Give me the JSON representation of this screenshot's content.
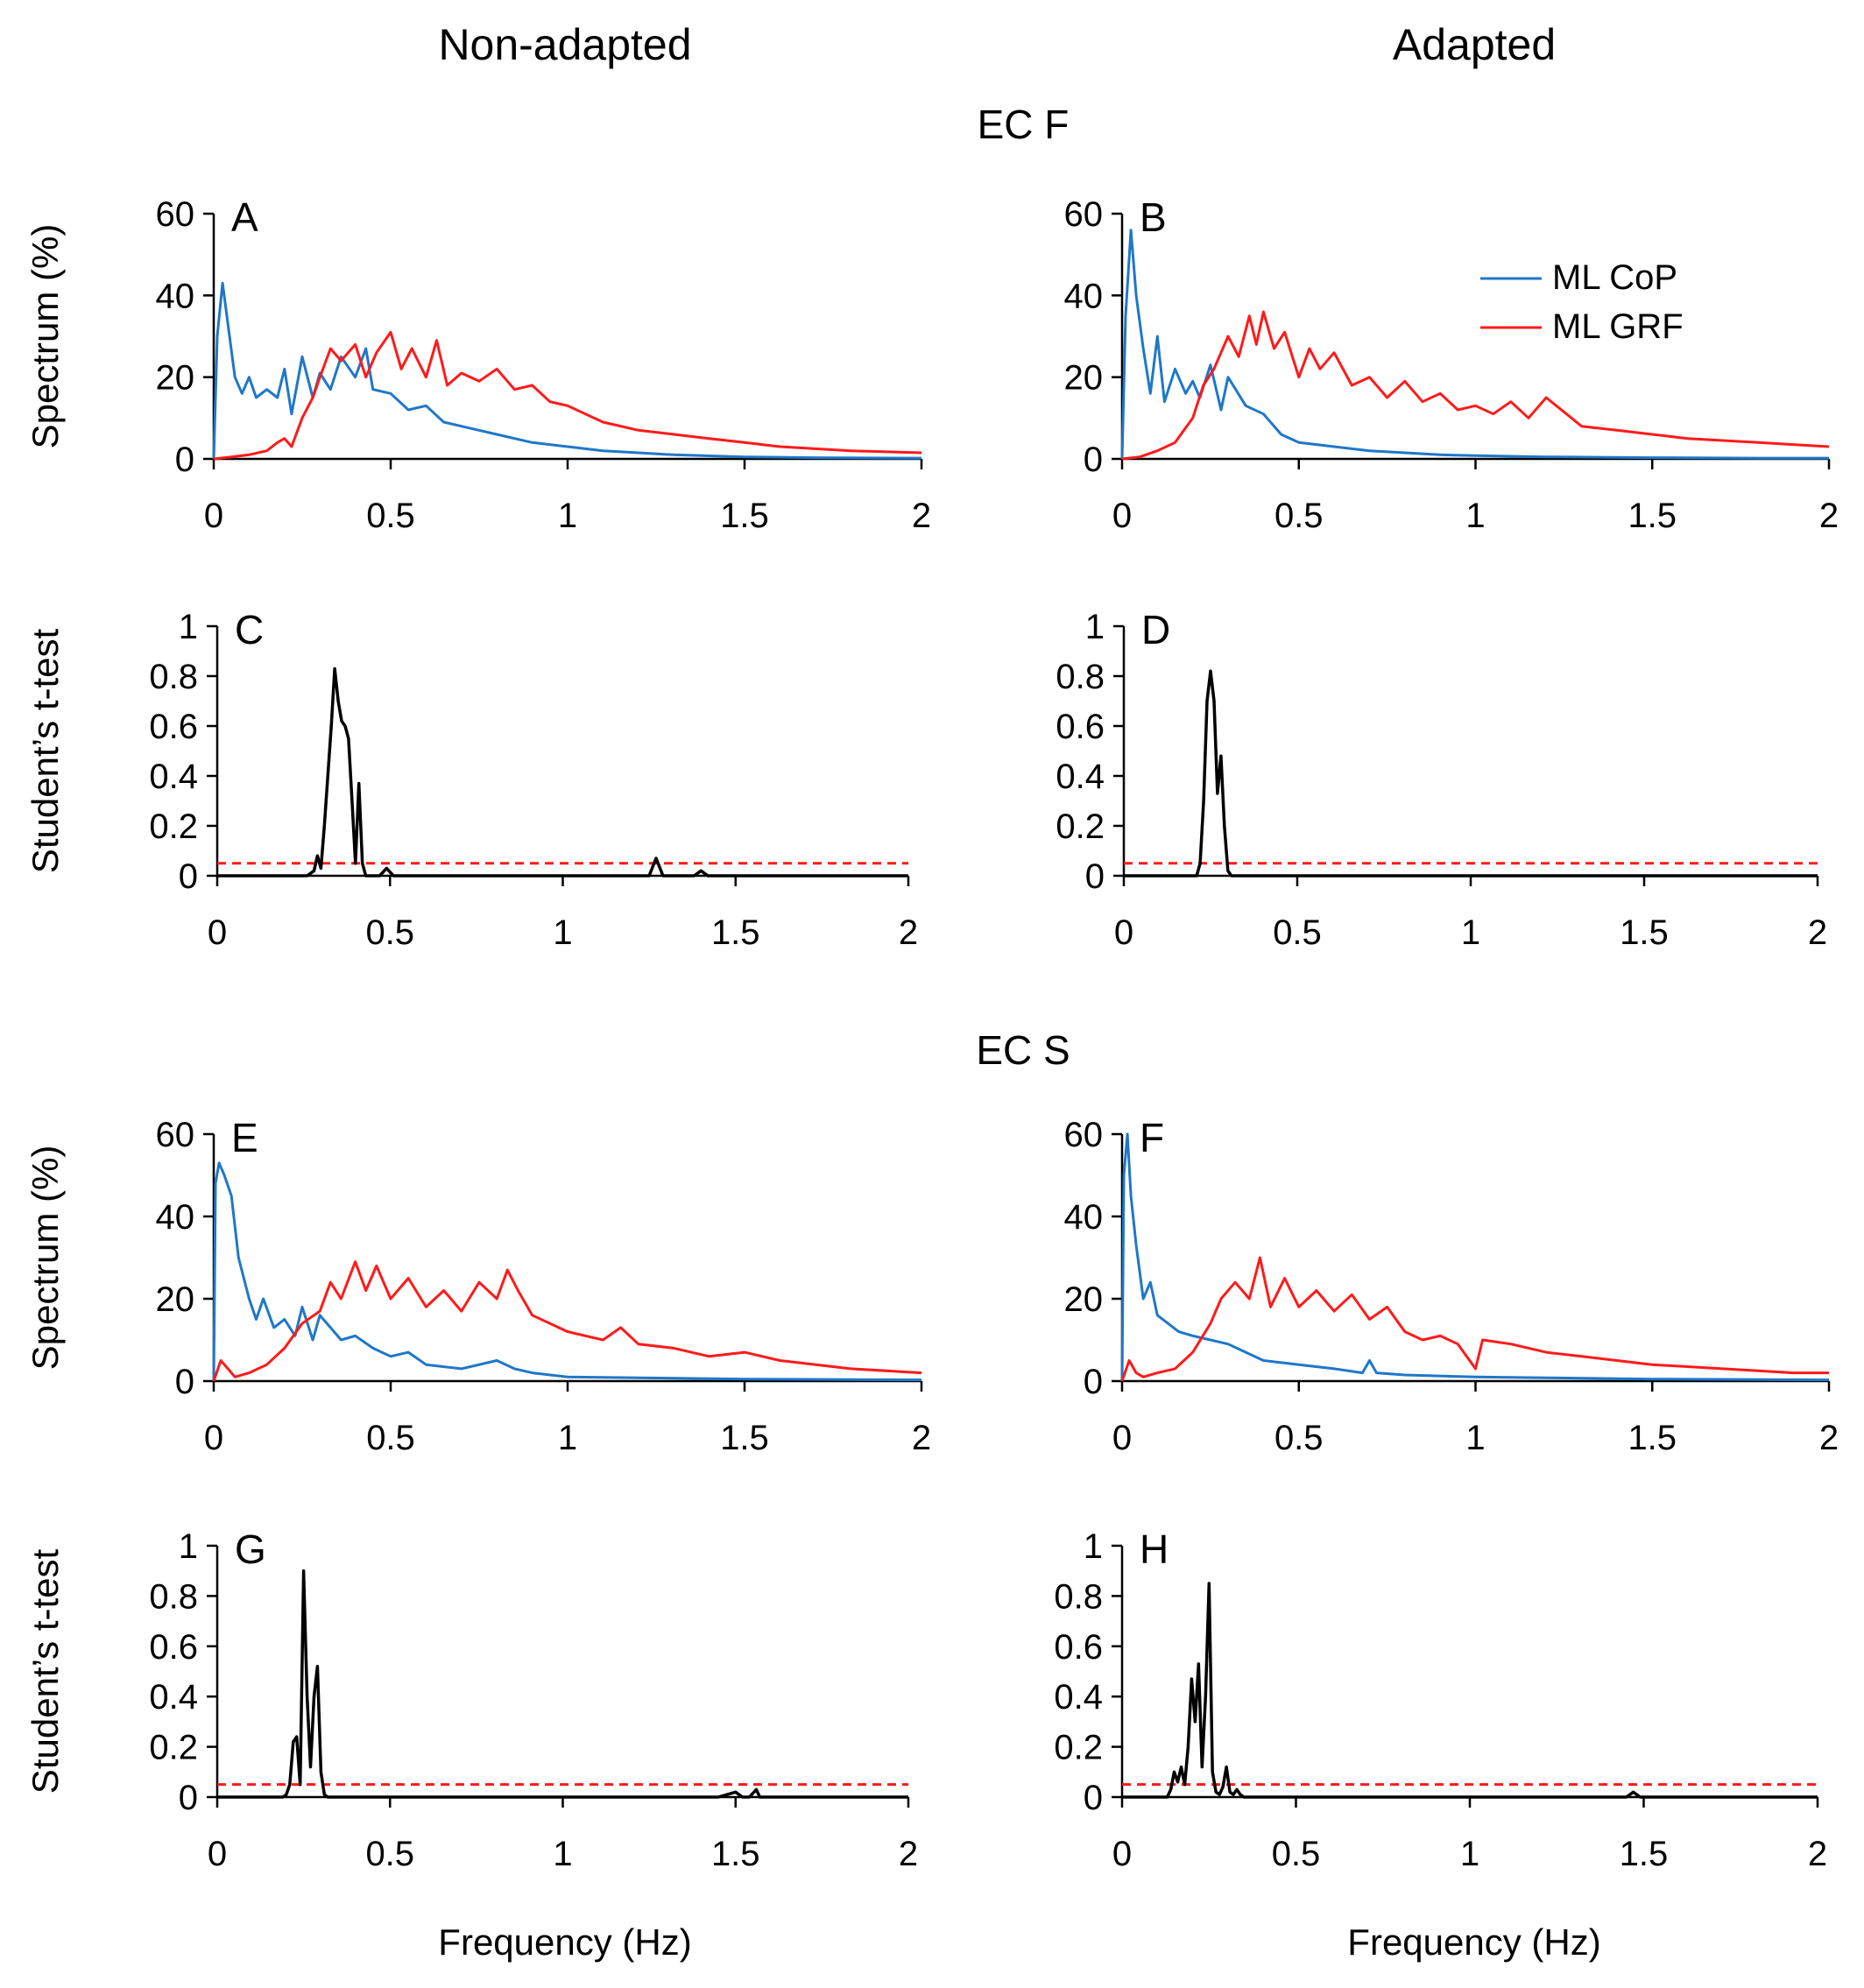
{
  "figure": {
    "columns": [
      "Non-adapted",
      "Adapted"
    ],
    "sections": [
      "EC F",
      "EC S"
    ],
    "legend": [
      {
        "label": "ML CoP",
        "color": "#1f77c9"
      },
      {
        "label": "ML GRF",
        "color": "#ff1a1a"
      }
    ],
    "xlabel": "Frequency (Hz)"
  },
  "chart_data": [
    {
      "id": "A",
      "type": "line",
      "panel_label": "A",
      "ylabel": "Spectrum (%)",
      "xlim": [
        0,
        2
      ],
      "ylim": [
        0,
        60
      ],
      "xticks": [
        "0",
        "0.5",
        "1",
        "1.5",
        "2"
      ],
      "yticks": [
        "0",
        "20",
        "40",
        "60"
      ],
      "series": [
        {
          "name": "ML CoP",
          "color": "#1f77c9",
          "x": [
            0,
            0.01,
            0.025,
            0.04,
            0.06,
            0.08,
            0.1,
            0.12,
            0.15,
            0.18,
            0.2,
            0.22,
            0.25,
            0.28,
            0.3,
            0.33,
            0.36,
            0.4,
            0.43,
            0.45,
            0.5,
            0.55,
            0.6,
            0.65,
            0.7,
            0.8,
            0.9,
            1.0,
            1.1,
            1.2,
            1.3,
            1.5,
            1.7,
            2.0
          ],
          "y": [
            0,
            30,
            43,
            33,
            20,
            16,
            20,
            15,
            17,
            15,
            22,
            11,
            25,
            15,
            21,
            17,
            25,
            20,
            27,
            17,
            16,
            12,
            13,
            9,
            8,
            6,
            4,
            3,
            2,
            1.5,
            1,
            0.5,
            0.3,
            0.2
          ]
        },
        {
          "name": "ML GRF",
          "color": "#ff1a1a",
          "x": [
            0,
            0.05,
            0.1,
            0.15,
            0.18,
            0.2,
            0.22,
            0.25,
            0.28,
            0.3,
            0.33,
            0.36,
            0.4,
            0.43,
            0.46,
            0.5,
            0.53,
            0.56,
            0.6,
            0.63,
            0.66,
            0.7,
            0.75,
            0.8,
            0.85,
            0.9,
            0.95,
            1.0,
            1.1,
            1.2,
            1.3,
            1.4,
            1.5,
            1.6,
            1.8,
            2.0
          ],
          "y": [
            0,
            0.5,
            1,
            2,
            4,
            5,
            3,
            10,
            15,
            20,
            27,
            24,
            28,
            20,
            26,
            31,
            22,
            27,
            20,
            29,
            18,
            21,
            19,
            22,
            17,
            18,
            14,
            13,
            9,
            7,
            6,
            5,
            4,
            3,
            2,
            1.5
          ]
        }
      ]
    },
    {
      "id": "B",
      "type": "line",
      "panel_label": "B",
      "ylabel": "",
      "xlim": [
        0,
        2
      ],
      "ylim": [
        0,
        60
      ],
      "xticks": [
        "0",
        "0.5",
        "1",
        "1.5",
        "2"
      ],
      "yticks": [
        "0",
        "20",
        "40",
        "60"
      ],
      "series": [
        {
          "name": "ML CoP",
          "color": "#1f77c9",
          "x": [
            0,
            0.01,
            0.025,
            0.04,
            0.06,
            0.08,
            0.1,
            0.12,
            0.15,
            0.18,
            0.2,
            0.22,
            0.25,
            0.28,
            0.3,
            0.35,
            0.4,
            0.45,
            0.5,
            0.6,
            0.7,
            0.8,
            0.9,
            1.0,
            1.2,
            1.5,
            1.8,
            2.0
          ],
          "y": [
            0,
            35,
            56,
            40,
            27,
            16,
            30,
            14,
            22,
            16,
            19,
            15,
            23,
            12,
            20,
            13,
            11,
            6,
            4,
            3,
            2,
            1.5,
            1,
            0.8,
            0.5,
            0.3,
            0.2,
            0.2
          ]
        },
        {
          "name": "ML GRF",
          "color": "#ff1a1a",
          "x": [
            0,
            0.05,
            0.1,
            0.15,
            0.2,
            0.23,
            0.26,
            0.3,
            0.33,
            0.36,
            0.38,
            0.4,
            0.43,
            0.46,
            0.5,
            0.53,
            0.56,
            0.6,
            0.65,
            0.7,
            0.75,
            0.8,
            0.85,
            0.9,
            0.95,
            1.0,
            1.05,
            1.1,
            1.15,
            1.2,
            1.3,
            1.4,
            1.5,
            1.6,
            1.8,
            2.0
          ],
          "y": [
            0,
            0.5,
            2,
            4,
            10,
            18,
            22,
            30,
            25,
            35,
            28,
            36,
            27,
            31,
            20,
            27,
            22,
            26,
            18,
            20,
            15,
            19,
            14,
            16,
            12,
            13,
            11,
            14,
            10,
            15,
            8,
            7,
            6,
            5,
            4,
            3
          ]
        }
      ]
    },
    {
      "id": "C",
      "type": "line",
      "panel_label": "C",
      "ylabel": "Student’s t-test",
      "xlim": [
        0,
        2
      ],
      "ylim": [
        0,
        1
      ],
      "xticks": [
        "0",
        "0.5",
        "1",
        "1.5",
        "2"
      ],
      "yticks": [
        "0",
        "0.2",
        "0.4",
        "0.6",
        "0.8",
        "1"
      ],
      "threshold": 0.05,
      "series": [
        {
          "name": "t-test",
          "color": "#000000",
          "x": [
            0,
            0.26,
            0.28,
            0.29,
            0.3,
            0.31,
            0.33,
            0.34,
            0.35,
            0.36,
            0.37,
            0.38,
            0.39,
            0.4,
            0.41,
            0.42,
            0.43,
            0.44,
            0.47,
            0.49,
            0.51,
            0.6,
            1.25,
            1.27,
            1.29,
            1.38,
            1.4,
            1.42,
            2.0
          ],
          "y": [
            0,
            0,
            0.02,
            0.08,
            0.03,
            0.2,
            0.6,
            0.83,
            0.7,
            0.62,
            0.6,
            0.55,
            0.3,
            0.05,
            0.37,
            0.05,
            0,
            0,
            0,
            0.03,
            0,
            0,
            0,
            0.07,
            0,
            0,
            0.02,
            0,
            0
          ]
        }
      ]
    },
    {
      "id": "D",
      "type": "line",
      "panel_label": "D",
      "ylabel": "",
      "xlim": [
        0,
        2
      ],
      "ylim": [
        0,
        1
      ],
      "xticks": [
        "0",
        "0.5",
        "1",
        "1.5",
        "2"
      ],
      "yticks": [
        "0",
        "0.2",
        "0.4",
        "0.6",
        "0.8",
        "1"
      ],
      "threshold": 0.05,
      "series": [
        {
          "name": "t-test",
          "color": "#000000",
          "x": [
            0,
            0.21,
            0.22,
            0.23,
            0.24,
            0.25,
            0.26,
            0.27,
            0.28,
            0.29,
            0.3,
            0.31,
            2.0
          ],
          "y": [
            0,
            0,
            0.05,
            0.3,
            0.7,
            0.82,
            0.7,
            0.33,
            0.48,
            0.2,
            0.02,
            0,
            0
          ]
        }
      ]
    },
    {
      "id": "E",
      "type": "line",
      "panel_label": "E",
      "ylabel": "Spectrum (%)",
      "xlim": [
        0,
        2
      ],
      "ylim": [
        0,
        60
      ],
      "xticks": [
        "0",
        "0.5",
        "1",
        "1.5",
        "2"
      ],
      "yticks": [
        "0",
        "20",
        "40",
        "60"
      ],
      "series": [
        {
          "name": "ML CoP",
          "color": "#1f77c9",
          "x": [
            0,
            0.005,
            0.015,
            0.03,
            0.05,
            0.07,
            0.1,
            0.12,
            0.14,
            0.17,
            0.2,
            0.23,
            0.25,
            0.28,
            0.3,
            0.33,
            0.36,
            0.4,
            0.45,
            0.5,
            0.55,
            0.6,
            0.7,
            0.8,
            0.85,
            0.9,
            1.0,
            1.2,
            1.5,
            2.0
          ],
          "y": [
            0,
            48,
            53,
            50,
            45,
            30,
            20,
            15,
            20,
            13,
            15,
            11,
            18,
            10,
            16,
            13,
            10,
            11,
            8,
            6,
            7,
            4,
            3,
            5,
            3,
            2,
            1,
            0.8,
            0.5,
            0.3
          ]
        },
        {
          "name": "ML GRF",
          "color": "#ff1a1a",
          "x": [
            0,
            0.02,
            0.04,
            0.06,
            0.1,
            0.15,
            0.2,
            0.25,
            0.3,
            0.33,
            0.36,
            0.4,
            0.43,
            0.46,
            0.5,
            0.55,
            0.6,
            0.65,
            0.7,
            0.75,
            0.8,
            0.83,
            0.86,
            0.9,
            1.0,
            1.1,
            1.15,
            1.2,
            1.3,
            1.4,
            1.5,
            1.6,
            1.8,
            2.0
          ],
          "y": [
            0,
            5,
            3,
            1,
            2,
            4,
            8,
            14,
            17,
            24,
            20,
            29,
            22,
            28,
            20,
            25,
            18,
            22,
            17,
            24,
            20,
            27,
            22,
            16,
            12,
            10,
            13,
            9,
            8,
            6,
            7,
            5,
            3,
            2
          ]
        }
      ]
    },
    {
      "id": "F",
      "type": "line",
      "panel_label": "F",
      "ylabel": "",
      "xlim": [
        0,
        2
      ],
      "ylim": [
        0,
        60
      ],
      "xticks": [
        "0",
        "0.5",
        "1",
        "1.5",
        "2"
      ],
      "yticks": [
        "0",
        "20",
        "40",
        "60"
      ],
      "series": [
        {
          "name": "ML CoP",
          "color": "#1f77c9",
          "x": [
            0,
            0.005,
            0.015,
            0.025,
            0.04,
            0.06,
            0.08,
            0.1,
            0.13,
            0.16,
            0.2,
            0.25,
            0.3,
            0.35,
            0.4,
            0.5,
            0.6,
            0.68,
            0.7,
            0.72,
            0.8,
            1.0,
            1.2,
            1.5,
            2.0
          ],
          "y": [
            0,
            50,
            60,
            45,
            33,
            20,
            24,
            16,
            14,
            12,
            11,
            10,
            9,
            7,
            5,
            4,
            3,
            2,
            5,
            2,
            1.5,
            1,
            0.8,
            0.5,
            0.3
          ]
        },
        {
          "name": "ML GRF",
          "color": "#ff1a1a",
          "x": [
            0,
            0.02,
            0.04,
            0.06,
            0.1,
            0.15,
            0.2,
            0.25,
            0.28,
            0.32,
            0.36,
            0.39,
            0.42,
            0.46,
            0.5,
            0.55,
            0.6,
            0.65,
            0.7,
            0.75,
            0.8,
            0.85,
            0.9,
            0.95,
            1.0,
            1.02,
            1.1,
            1.2,
            1.3,
            1.4,
            1.5,
            1.7,
            1.9,
            2.0
          ],
          "y": [
            0,
            5,
            2,
            1,
            2,
            3,
            7,
            14,
            20,
            24,
            20,
            30,
            18,
            25,
            18,
            22,
            17,
            21,
            15,
            18,
            12,
            10,
            11,
            9,
            3,
            10,
            9,
            7,
            6,
            5,
            4,
            3,
            2,
            2
          ]
        }
      ]
    },
    {
      "id": "G",
      "type": "line",
      "panel_label": "G",
      "ylabel": "Student’s t-test",
      "xlim": [
        0,
        2
      ],
      "ylim": [
        0,
        1
      ],
      "xticks": [
        "0",
        "0.5",
        "1",
        "1.5",
        "2"
      ],
      "yticks": [
        "0",
        "0.2",
        "0.4",
        "0.6",
        "0.8",
        "1"
      ],
      "threshold": 0.05,
      "series": [
        {
          "name": "t-test",
          "color": "#000000",
          "x": [
            0,
            0.19,
            0.2,
            0.21,
            0.22,
            0.23,
            0.24,
            0.25,
            0.26,
            0.27,
            0.28,
            0.29,
            0.3,
            0.31,
            0.32,
            0.33,
            1.45,
            1.5,
            1.52,
            1.54,
            1.56,
            1.57,
            1.58,
            2.0
          ],
          "y": [
            0,
            0,
            0.01,
            0.05,
            0.22,
            0.24,
            0.05,
            0.9,
            0.4,
            0.12,
            0.4,
            0.52,
            0.1,
            0.01,
            0,
            0,
            0,
            0.02,
            0,
            0,
            0.03,
            0,
            0,
            0
          ]
        }
      ]
    },
    {
      "id": "H",
      "type": "line",
      "panel_label": "H",
      "ylabel": "",
      "xlim": [
        0,
        2
      ],
      "ylim": [
        0,
        1
      ],
      "xticks": [
        "0",
        "0.5",
        "1",
        "1.5",
        "2"
      ],
      "yticks": [
        "0",
        "0.2",
        "0.4",
        "0.6",
        "0.8",
        "1"
      ],
      "threshold": 0.05,
      "series": [
        {
          "name": "t-test",
          "color": "#000000",
          "x": [
            0,
            0.13,
            0.14,
            0.15,
            0.16,
            0.17,
            0.18,
            0.19,
            0.2,
            0.21,
            0.22,
            0.23,
            0.24,
            0.25,
            0.26,
            0.27,
            0.28,
            0.29,
            0.3,
            0.31,
            0.32,
            0.33,
            0.34,
            0.35,
            0.36,
            0.37,
            1.45,
            1.47,
            1.49,
            2.0
          ],
          "y": [
            0,
            0,
            0.03,
            0.1,
            0.06,
            0.12,
            0.05,
            0.2,
            0.47,
            0.3,
            0.53,
            0.12,
            0.4,
            0.85,
            0.1,
            0.02,
            0.01,
            0.04,
            0.12,
            0.02,
            0.01,
            0.03,
            0.01,
            0,
            0,
            0,
            0,
            0.02,
            0,
            0
          ]
        }
      ]
    }
  ]
}
